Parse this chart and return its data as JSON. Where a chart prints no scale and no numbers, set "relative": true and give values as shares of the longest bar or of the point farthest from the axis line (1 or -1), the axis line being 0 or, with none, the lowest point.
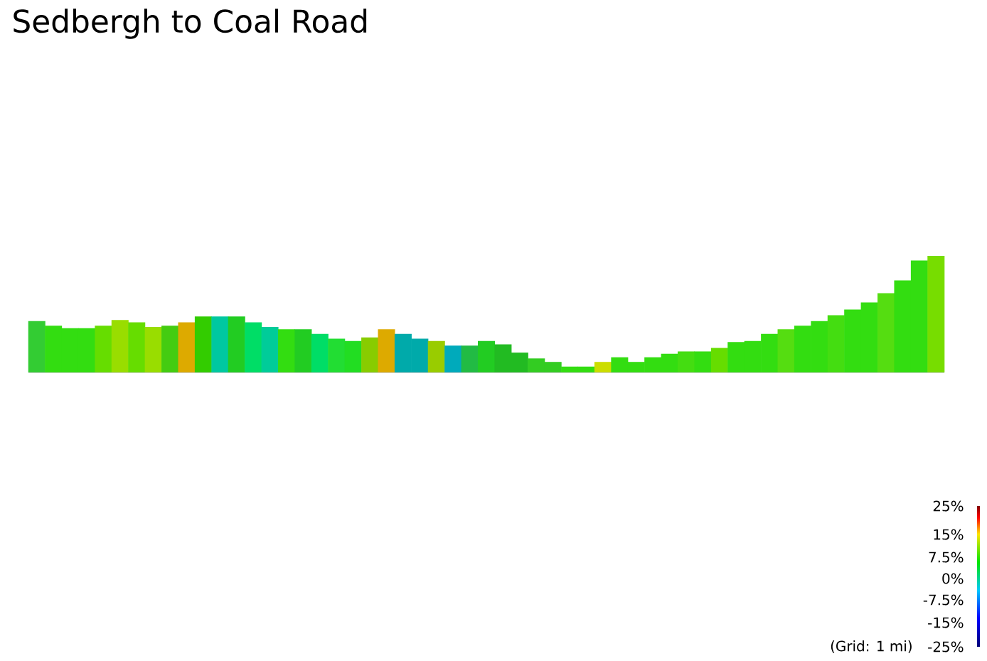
{
  "chart_data": {
    "type": "bar",
    "title": "Sedbergh to Coal Road",
    "relative": true,
    "categories": [
      null,
      null,
      null,
      null,
      null,
      null,
      null,
      null,
      null,
      null,
      null,
      null,
      null,
      null,
      null,
      null,
      null,
      null,
      null,
      null,
      null,
      null,
      null,
      null,
      null,
      null,
      null,
      null,
      null,
      null,
      null,
      null,
      null,
      null,
      null,
      null,
      null,
      null,
      null,
      null,
      null,
      null,
      null,
      null,
      null,
      null,
      null,
      null,
      null,
      null,
      null,
      null,
      null,
      null,
      null
    ],
    "values": [
      0.44,
      0.4,
      0.38,
      0.38,
      0.4,
      0.45,
      0.43,
      0.39,
      0.4,
      0.43,
      0.48,
      0.48,
      0.48,
      0.43,
      0.39,
      0.37,
      0.37,
      0.33,
      0.29,
      0.27,
      0.3,
      0.37,
      0.33,
      0.29,
      0.27,
      0.23,
      0.23,
      0.27,
      0.24,
      0.17,
      0.12,
      0.09,
      0.05,
      0.05,
      0.09,
      0.13,
      0.09,
      0.13,
      0.16,
      0.18,
      0.18,
      0.21,
      0.26,
      0.27,
      0.33,
      0.37,
      0.4,
      0.44,
      0.49,
      0.54,
      0.6,
      0.68,
      0.79,
      0.96,
      1
    ],
    "colors": [
      "#33cc33",
      "#33dd11",
      "#33dd11",
      "#33dd11",
      "#66dd00",
      "#99dd00",
      "#66dd00",
      "#99dd00",
      "#44cc11",
      "#ddaa00",
      "#33cc00",
      "#00c8a0",
      "#22cc22",
      "#00dd66",
      "#00cc99",
      "#33dd11",
      "#22cc22",
      "#00dd66",
      "#22dd33",
      "#22dd22",
      "#88cc00",
      "#ddaa00",
      "#00aaaa",
      "#00aaaa",
      "#99cc00",
      "#00aabb",
      "#22bb44",
      "#22cc22",
      "#22bb22",
      "#22bb22",
      "#33cc22",
      "#33cc22",
      "#33dd11",
      "#33dd11",
      "#ccdd00",
      "#33dd11",
      "#33dd11",
      "#33dd11",
      "#33dd11",
      "#44dd11",
      "#33dd11",
      "#66dd00",
      "#33dd11",
      "#33dd11",
      "#33dd11",
      "#55dd11",
      "#33dd11",
      "#33dd11",
      "#44dd11",
      "#33dd11",
      "#33dd11",
      "#55dd11",
      "#33dd11",
      "#33dd11",
      "#77dd00"
    ],
    "annotations": [
      "25%",
      "15%",
      "7.5%",
      "0%",
      "-7.5%",
      "-15%",
      "-25%",
      "(Grid: 1 mi)"
    ]
  }
}
